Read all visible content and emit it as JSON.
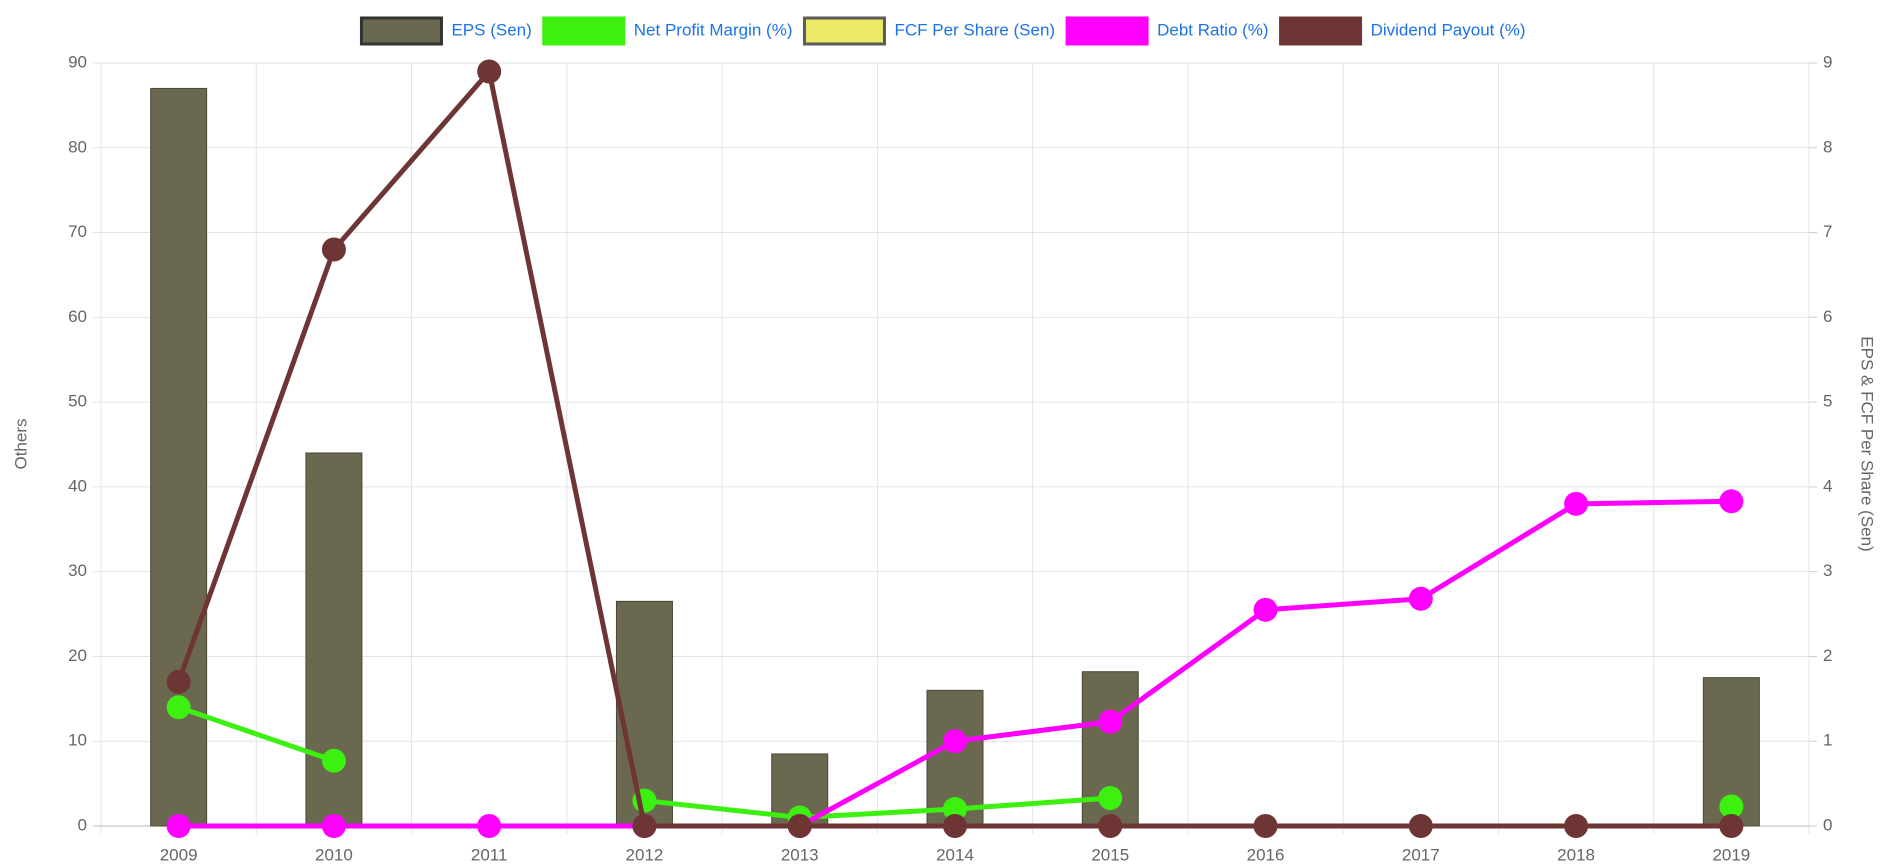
{
  "chart_data": {
    "type": "bar",
    "ylabel": "Others",
    "y2label": "EPS & FCF Per Share (Sen)",
    "categories": [
      "2009",
      "2010",
      "2011",
      "2012",
      "2013",
      "2014",
      "2015",
      "2016",
      "2017",
      "2018",
      "2019"
    ],
    "series": [
      {
        "name": "EPS (Sen)",
        "type": "bar",
        "axis": "y2",
        "color": "#6b6850",
        "values": [
          8.7,
          4.4,
          null,
          2.65,
          0.85,
          1.6,
          1.82,
          null,
          null,
          null,
          1.75
        ]
      },
      {
        "name": "Net Profit Margin (%)",
        "type": "line",
        "color": "#3cf010",
        "values": [
          14,
          7.7,
          null,
          3,
          1,
          2,
          3.3,
          null,
          null,
          null,
          2.3
        ]
      },
      {
        "name": "FCF Per Share (Sen)",
        "type": "bar",
        "axis": "y2",
        "color": "#e6e640",
        "values": [
          null,
          null,
          null,
          null,
          null,
          null,
          null,
          null,
          null,
          null,
          null
        ]
      },
      {
        "name": "Debt Ratio (%)",
        "type": "line",
        "color": "#ff00ff",
        "values": [
          0,
          0,
          0,
          0,
          0,
          10,
          12.3,
          25.5,
          26.8,
          38,
          38.3
        ]
      },
      {
        "name": "Dividend Payout (%)",
        "type": "line",
        "color": "#6e3535",
        "values": [
          17,
          68,
          89,
          0,
          0,
          0,
          0,
          0,
          0,
          0,
          0
        ]
      }
    ],
    "ylim": [
      0,
      90
    ],
    "yticks": [
      0,
      10,
      20,
      30,
      40,
      50,
      60,
      70,
      80,
      90
    ],
    "y2lim": [
      0,
      9
    ],
    "y2ticks": [
      0,
      1,
      2,
      3,
      4,
      5,
      6,
      7,
      8,
      9
    ],
    "grid": true,
    "legend": "top"
  }
}
